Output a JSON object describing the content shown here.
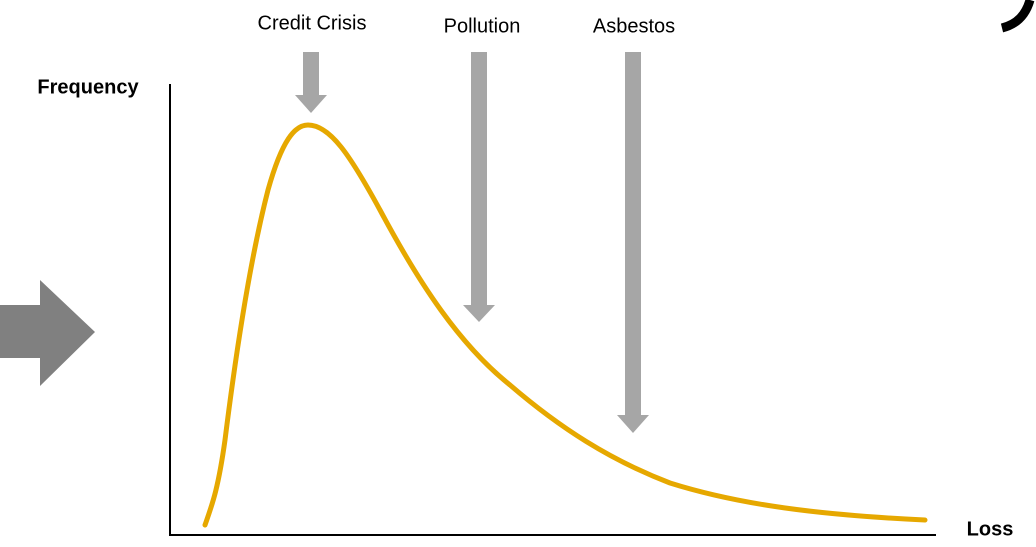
{
  "axes": {
    "y_label": "Frequency",
    "x_label": "Loss"
  },
  "annotations": [
    "Credit Crisis",
    "Pollution",
    "Asbestos"
  ]
}
